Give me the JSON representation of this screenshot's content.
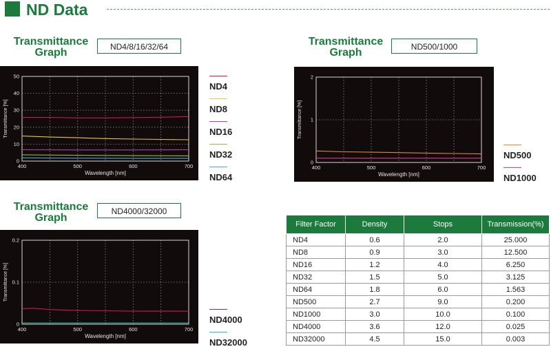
{
  "header": {
    "title": "ND Data"
  },
  "graphs": [
    {
      "title_line1": "Transmittance",
      "title_line2": "Graph",
      "subtitle": "ND4/8/16/32/64",
      "legend": [
        {
          "label": "ND4",
          "color": "#d4145a"
        },
        {
          "label": "ND8",
          "color": "#e8c93a"
        },
        {
          "label": "ND16",
          "color": "#b83cb0"
        },
        {
          "label": "ND32",
          "color": "#9ab83a"
        },
        {
          "label": "ND64",
          "color": "#4aa8d8"
        }
      ]
    },
    {
      "title_line1": "Transmittance",
      "title_line2": "Graph",
      "subtitle": "ND500/1000",
      "legend": [
        {
          "label": "ND500",
          "color": "#e0893a"
        },
        {
          "label": "ND1000",
          "color": "#d8389a"
        }
      ]
    },
    {
      "title_line1": "Transmittance",
      "title_line2": "Graph",
      "subtitle": "ND4000/32000",
      "legend": [
        {
          "label": "ND4000",
          "color": "#d4145a"
        },
        {
          "label": "ND32000",
          "color": "#3ab0b0"
        }
      ]
    }
  ],
  "chart_data": [
    {
      "type": "line",
      "xlabel": "Wavelength [nm]",
      "ylabel": "Transmittance [%]",
      "xlim": [
        400,
        700
      ],
      "ylim": [
        0,
        50
      ],
      "xticks": [
        400,
        500,
        600,
        700
      ],
      "yticks": [
        0,
        10,
        20,
        30,
        40,
        50
      ],
      "grid": true,
      "series": [
        {
          "name": "ND4",
          "color": "#d4145a",
          "x": [
            400,
            450,
            500,
            550,
            600,
            650,
            700
          ],
          "y": [
            25.8,
            25.8,
            25.5,
            25.5,
            25.7,
            25.9,
            26.3
          ]
        },
        {
          "name": "ND8",
          "color": "#e8c93a",
          "x": [
            400,
            450,
            500,
            550,
            600,
            650,
            700
          ],
          "y": [
            14.8,
            14.2,
            13.8,
            13.3,
            13.0,
            12.8,
            12.6
          ]
        },
        {
          "name": "ND16",
          "color": "#b83cb0",
          "x": [
            400,
            500,
            600,
            700
          ],
          "y": [
            6.7,
            6.6,
            6.6,
            6.7
          ]
        },
        {
          "name": "ND32",
          "color": "#9ab83a",
          "x": [
            400,
            500,
            600,
            700
          ],
          "y": [
            3.7,
            3.4,
            3.2,
            3.1
          ]
        },
        {
          "name": "ND64",
          "color": "#4aa8d8",
          "x": [
            400,
            500,
            600,
            700
          ],
          "y": [
            1.9,
            1.7,
            1.6,
            1.6
          ]
        }
      ]
    },
    {
      "type": "line",
      "xlabel": "Wavelength [nm]",
      "ylabel": "Transmittance [%]",
      "xlim": [
        400,
        700
      ],
      "ylim": [
        0,
        2
      ],
      "xticks": [
        400,
        500,
        600,
        700
      ],
      "yticks": [
        0,
        1,
        2
      ],
      "grid": true,
      "series": [
        {
          "name": "ND500",
          "color": "#e0893a",
          "x": [
            400,
            450,
            500,
            550,
            600,
            650,
            700
          ],
          "y": [
            0.27,
            0.25,
            0.24,
            0.23,
            0.22,
            0.21,
            0.2
          ]
        },
        {
          "name": "ND1000",
          "color": "#d8389a",
          "x": [
            400,
            500,
            600,
            700
          ],
          "y": [
            0.1,
            0.1,
            0.1,
            0.1
          ]
        }
      ]
    },
    {
      "type": "line",
      "xlabel": "Wavelength [nm]",
      "ylabel": "Transmittance [%]",
      "xlim": [
        400,
        700
      ],
      "ylim": [
        0,
        0.2
      ],
      "xticks": [
        400,
        500,
        600,
        700
      ],
      "yticks": [
        0,
        0.1,
        0.2
      ],
      "grid": true,
      "series": [
        {
          "name": "ND4000",
          "color": "#d4145a",
          "x": [
            400,
            420,
            450,
            500,
            550,
            600,
            650,
            700
          ],
          "y": [
            0.037,
            0.038,
            0.035,
            0.033,
            0.032,
            0.031,
            0.031,
            0.031
          ]
        },
        {
          "name": "ND32000",
          "color": "#3ab0b0",
          "x": [
            400,
            500,
            600,
            700
          ],
          "y": [
            0.003,
            0.003,
            0.003,
            0.003
          ]
        }
      ]
    },
    {
      "type": "table",
      "columns": [
        "Filter Factor",
        "Density",
        "Stops",
        "Transmission(%)"
      ],
      "rows": [
        [
          "ND4",
          "0.6",
          "2.0",
          "25.000"
        ],
        [
          "ND8",
          "0.9",
          "3.0",
          "12.500"
        ],
        [
          "ND16",
          "1.2",
          "4.0",
          "6.250"
        ],
        [
          "ND32",
          "1.5",
          "5.0",
          "3.125"
        ],
        [
          "ND64",
          "1.8",
          "6.0",
          "1.563"
        ],
        [
          "ND500",
          "2.7",
          "9.0",
          "0.200"
        ],
        [
          "ND1000",
          "3.0",
          "10.0",
          "0.100"
        ],
        [
          "ND4000",
          "3.6",
          "12.0",
          "0.025"
        ],
        [
          "ND32000",
          "4.5",
          "15.0",
          "0.003"
        ]
      ]
    }
  ]
}
